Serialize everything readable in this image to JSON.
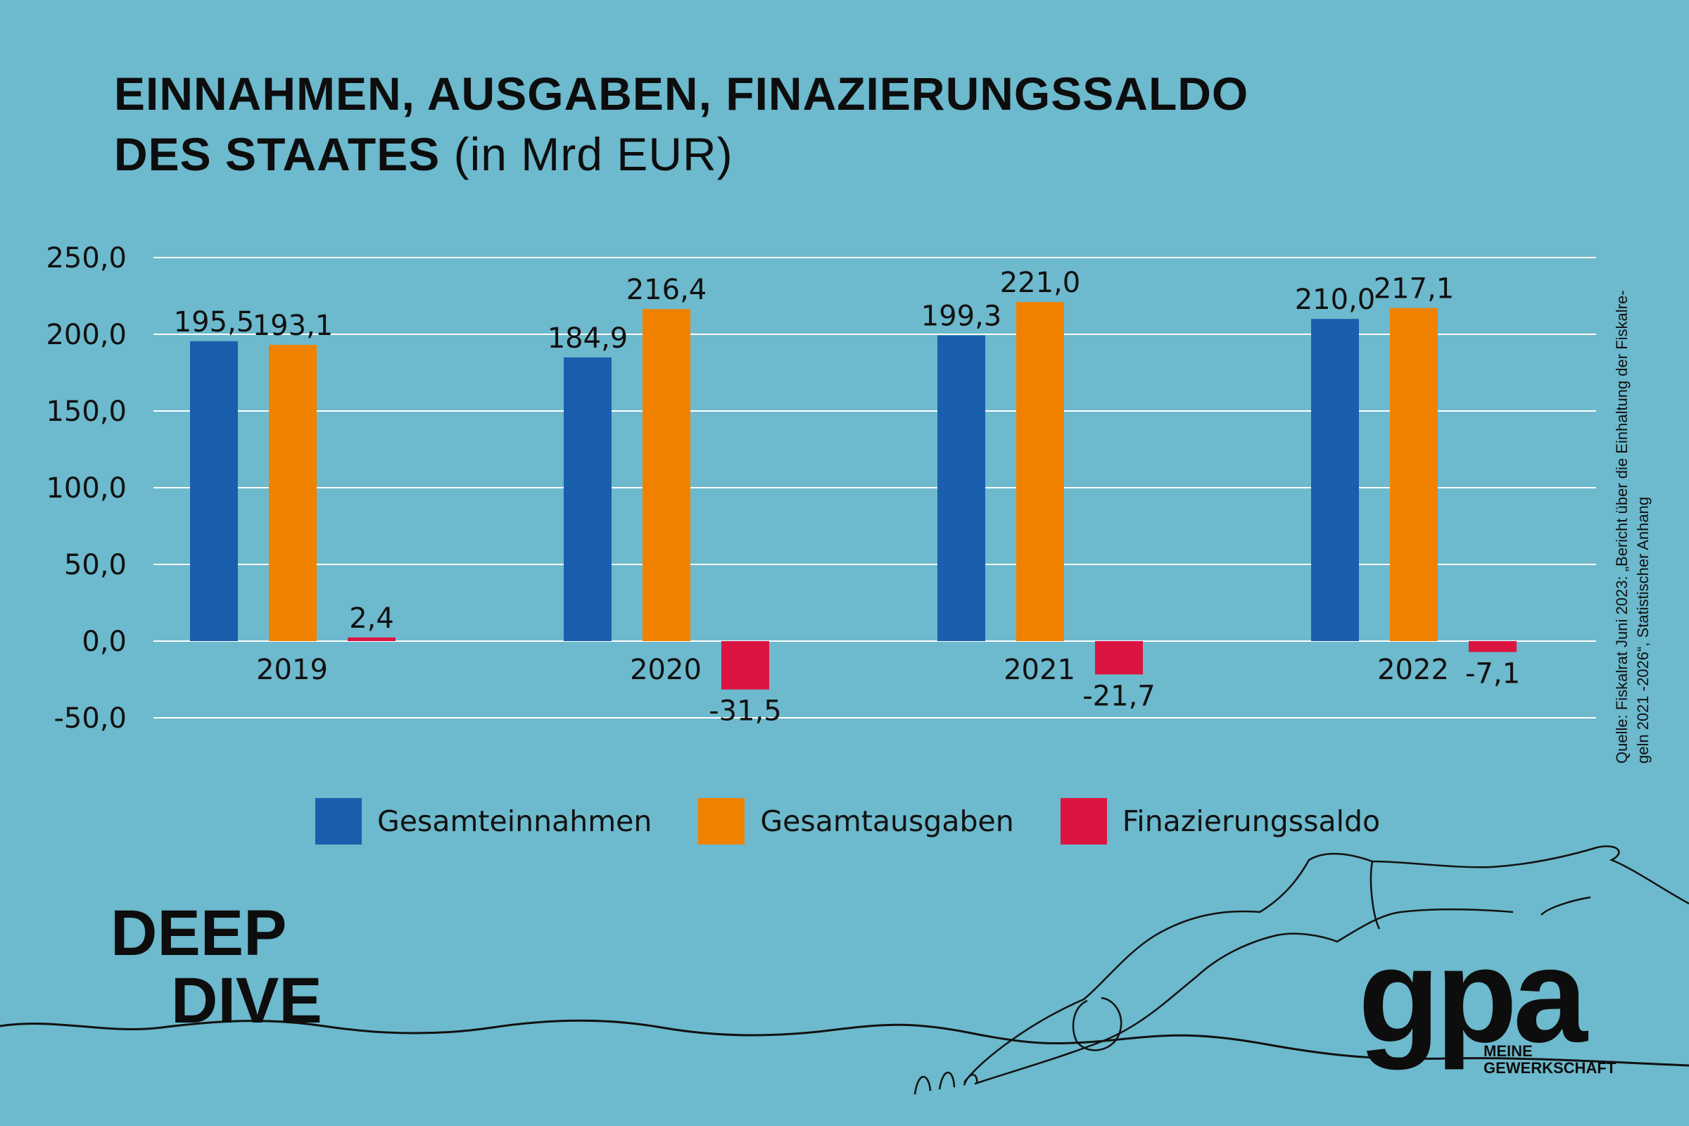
{
  "title": {
    "line1": "EINNAHMEN, AUSGABEN, FINAZIERUNGSSALDO",
    "line2_bold": "DES STAATES",
    "line2_unit": "(in Mrd EUR)"
  },
  "source": {
    "line1": "Quelle: Fiskalrat Juni 2023: „Bericht über die  Einhaltung der Fiskalre-",
    "line2": "geln 2021 -2026“, Statistischer Anhang"
  },
  "brand": {
    "line1": "DEEP",
    "line2": "DIVE"
  },
  "logo": {
    "mark": "gpa",
    "sub1": "MEINE",
    "sub2": "GEWERKSCHAFT"
  },
  "colors": {
    "background": "#6db9cd",
    "gesamteinnahmen": "#1a5fad",
    "gesamtausgaben": "#f08200",
    "finazierungssaldo": "#dc1442",
    "grid": "#ffffff"
  },
  "legend": [
    {
      "label": "Gesamteinnahmen",
      "color": "#1a5fad"
    },
    {
      "label": "Gesamtausgaben",
      "color": "#f08200"
    },
    {
      "label": "Finazierungssaldo",
      "color": "#dc1442"
    }
  ],
  "chart_data": {
    "type": "bar",
    "title": "EINNAHMEN, AUSGABEN, FINAZIERUNGSSALDO DES STAATES (in Mrd EUR)",
    "categories": [
      "2019",
      "2020",
      "2021",
      "2022"
    ],
    "series": [
      {
        "name": "Gesamteinnahmen",
        "values": [
          195.5,
          184.9,
          199.3,
          210.0
        ],
        "labels": [
          "195,5",
          "184,9",
          "199,3",
          "210,0"
        ],
        "color": "#1a5fad"
      },
      {
        "name": "Gesamtausgaben",
        "values": [
          193.1,
          216.4,
          221.0,
          217.1
        ],
        "labels": [
          "193,1",
          "216,4",
          "221,0",
          "217,1"
        ],
        "color": "#f08200"
      },
      {
        "name": "Finazierungssaldo",
        "values": [
          2.4,
          -31.5,
          -21.7,
          -7.1
        ],
        "labels": [
          "2,4",
          "-31,5",
          "-21,7",
          "-7,1"
        ],
        "color": "#dc1442"
      }
    ],
    "yticks": [
      250,
      200,
      150,
      100,
      50,
      0,
      -50
    ],
    "ytick_labels": [
      "250,0",
      "200,0",
      "150,0",
      "100,0",
      "50,0",
      "0,0",
      "-50,0"
    ],
    "ylim": [
      -50,
      250
    ],
    "grid": true,
    "legend_position": "bottom"
  }
}
